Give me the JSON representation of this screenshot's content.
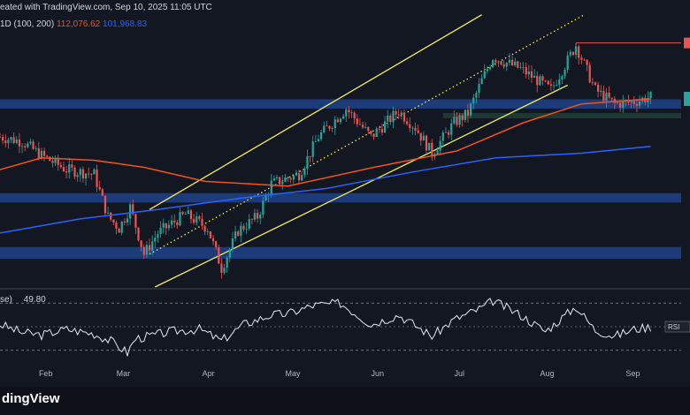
{
  "header": {
    "line1": "eated with TradingView.com, Sep 10, 2025 11:05 UTC",
    "ema_label": "1D (100, 200)",
    "ema100_value": "112,076.62",
    "ema200_value": "101,968.83"
  },
  "rsi": {
    "label_prefix": "se)",
    "value": "49.80",
    "tag": "RSI"
  },
  "footer": {
    "logo": "dingView"
  },
  "colors": {
    "bg": "#131722",
    "up": "#26a69a",
    "down": "#ef5350",
    "ema100": "#f2541b",
    "ema200": "#2962ff",
    "channel": "#f5f05c",
    "zone": "#1f3f82",
    "rsi": "#e8eaf0"
  },
  "chart_data": [
    {
      "type": "candlestick",
      "title": "",
      "x_ticks": [
        "Feb",
        "Mar",
        "Apr",
        "May",
        "Jun",
        "Jul",
        "Aug",
        "Sep"
      ],
      "x_range": [
        "2025-01-17",
        "2025-09-20"
      ],
      "ylim": [
        72000,
        126000
      ],
      "indicators": [
        {
          "name": "EMA 100",
          "current_value": 112076.62,
          "color": "#f2541b"
        },
        {
          "name": "EMA 200",
          "current_value": 101968.83,
          "color": "#2962ff"
        }
      ],
      "close_path": [
        [
          "2025-01-17",
          104000
        ],
        [
          "2025-01-25",
          103000
        ],
        [
          "2025-02-01",
          100000
        ],
        [
          "2025-02-10",
          97000
        ],
        [
          "2025-02-20",
          96000
        ],
        [
          "2025-02-25",
          87000
        ],
        [
          "2025-03-01",
          84500
        ],
        [
          "2025-03-05",
          89000
        ],
        [
          "2025-03-10",
          79000
        ],
        [
          "2025-03-15",
          83500
        ],
        [
          "2025-03-20",
          85500
        ],
        [
          "2025-03-25",
          87500
        ],
        [
          "2025-04-02",
          84500
        ],
        [
          "2025-04-07",
          76000
        ],
        [
          "2025-04-13",
          84000
        ],
        [
          "2025-04-20",
          87000
        ],
        [
          "2025-04-25",
          94000
        ],
        [
          "2025-05-05",
          96000
        ],
        [
          "2025-05-12",
          104000
        ],
        [
          "2025-05-22",
          110000
        ],
        [
          "2025-05-31",
          104000
        ],
        [
          "2025-06-10",
          109500
        ],
        [
          "2025-06-16",
          106000
        ],
        [
          "2025-06-22",
          100500
        ],
        [
          "2025-06-30",
          107000
        ],
        [
          "2025-07-05",
          109000
        ],
        [
          "2025-07-10",
          116000
        ],
        [
          "2025-07-14",
          121000
        ],
        [
          "2025-07-24",
          118500
        ],
        [
          "2025-08-04",
          114000
        ],
        [
          "2025-08-13",
          123500
        ],
        [
          "2025-08-20",
          114000
        ],
        [
          "2025-08-27",
          111000
        ],
        [
          "2025-09-03",
          111500
        ],
        [
          "2025-09-09",
          112500
        ]
      ],
      "ema100_path": [
        [
          "2025-01-17",
          97000
        ],
        [
          "2025-02-01",
          99500
        ],
        [
          "2025-02-20",
          99000
        ],
        [
          "2025-03-10",
          97500
        ],
        [
          "2025-04-01",
          94500
        ],
        [
          "2025-05-01",
          93500
        ],
        [
          "2025-06-01",
          97500
        ],
        [
          "2025-07-01",
          101000
        ],
        [
          "2025-07-25",
          107000
        ],
        [
          "2025-08-15",
          111000
        ],
        [
          "2025-09-09",
          112076.62
        ]
      ],
      "ema200_path": [
        [
          "2025-01-17",
          83500
        ],
        [
          "2025-02-15",
          86500
        ],
        [
          "2025-03-15",
          88500
        ],
        [
          "2025-04-15",
          91000
        ],
        [
          "2025-05-15",
          93000
        ],
        [
          "2025-06-15",
          96500
        ],
        [
          "2025-07-15",
          99500
        ],
        [
          "2025-08-15",
          100500
        ],
        [
          "2025-09-09",
          101968.83
        ]
      ],
      "channel_lines": [
        {
          "name": "upper",
          "points": [
            [
              "2025-03-12",
              88500
            ],
            [
              "2025-07-10",
              130000
            ]
          ]
        },
        {
          "name": "lower",
          "points": [
            [
              "2025-03-14",
              72000
            ],
            [
              "2025-08-10",
              115000
            ]
          ]
        },
        {
          "name": "mid-dotted",
          "points": [
            [
              "2025-03-12",
              79000
            ],
            [
              "2025-08-16",
              130000
            ]
          ]
        }
      ],
      "zones": [
        {
          "from": 110000,
          "to": 112000
        },
        {
          "from": 90000,
          "to": 92000
        },
        {
          "from": 78000,
          "to": 80500
        }
      ],
      "level_lines": [
        {
          "value": 108500,
          "from": "2025-06-26",
          "to": "2025-09-20",
          "style": "dashed-band"
        },
        {
          "value": 124000,
          "from": "2025-08-13",
          "to": "2025-09-20",
          "style": "solid-red"
        }
      ]
    },
    {
      "type": "line",
      "title": "",
      "series": [
        {
          "name": "RSI",
          "current_value": 49.8
        }
      ],
      "ylim": [
        20,
        80
      ],
      "levels": [
        70,
        50,
        30
      ],
      "path": [
        [
          "2025-01-17",
          52
        ],
        [
          "2025-01-25",
          45
        ],
        [
          "2025-02-01",
          43
        ],
        [
          "2025-02-10",
          48
        ],
        [
          "2025-02-20",
          44
        ],
        [
          "2025-02-26",
          38
        ],
        [
          "2025-03-04",
          28
        ],
        [
          "2025-03-07",
          40
        ],
        [
          "2025-03-12",
          42
        ],
        [
          "2025-03-20",
          46
        ],
        [
          "2025-03-30",
          48
        ],
        [
          "2025-04-07",
          38
        ],
        [
          "2025-04-15",
          52
        ],
        [
          "2025-04-25",
          60
        ],
        [
          "2025-05-01",
          61
        ],
        [
          "2025-05-10",
          68
        ],
        [
          "2025-05-20",
          70
        ],
        [
          "2025-05-31",
          52
        ],
        [
          "2025-06-10",
          60
        ],
        [
          "2025-06-22",
          42
        ],
        [
          "2025-06-30",
          56
        ],
        [
          "2025-07-10",
          66
        ],
        [
          "2025-07-14",
          72
        ],
        [
          "2025-07-24",
          60
        ],
        [
          "2025-08-02",
          46
        ],
        [
          "2025-08-13",
          67
        ],
        [
          "2025-08-20",
          47
        ],
        [
          "2025-08-27",
          42
        ],
        [
          "2025-09-03",
          48
        ],
        [
          "2025-09-09",
          50
        ]
      ]
    }
  ]
}
